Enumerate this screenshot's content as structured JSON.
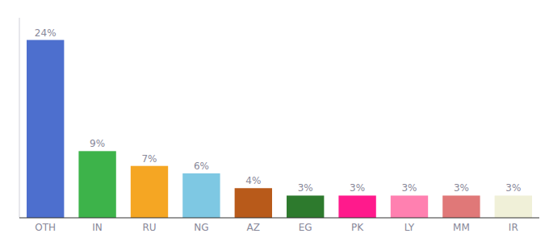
{
  "chart_data": {
    "type": "bar",
    "categories": [
      "OTH",
      "IN",
      "RU",
      "NG",
      "AZ",
      "EG",
      "PK",
      "LY",
      "MM",
      "IR"
    ],
    "values": [
      24,
      9,
      7,
      6,
      4,
      3,
      3,
      3,
      3,
      3
    ],
    "value_labels": [
      "24%",
      "9%",
      "7%",
      "6%",
      "4%",
      "3%",
      "3%",
      "3%",
      "3%",
      "3%"
    ],
    "colors": [
      "#4d6fce",
      "#3db34a",
      "#f5a623",
      "#7ec8e3",
      "#b85a1a",
      "#2d7a2d",
      "#ff1a8c",
      "#ff80b0",
      "#e07878",
      "#f0f0d8"
    ],
    "ylim": [
      0,
      27
    ],
    "data_labels": true,
    "tick_labels": "x",
    "grid": false
  }
}
